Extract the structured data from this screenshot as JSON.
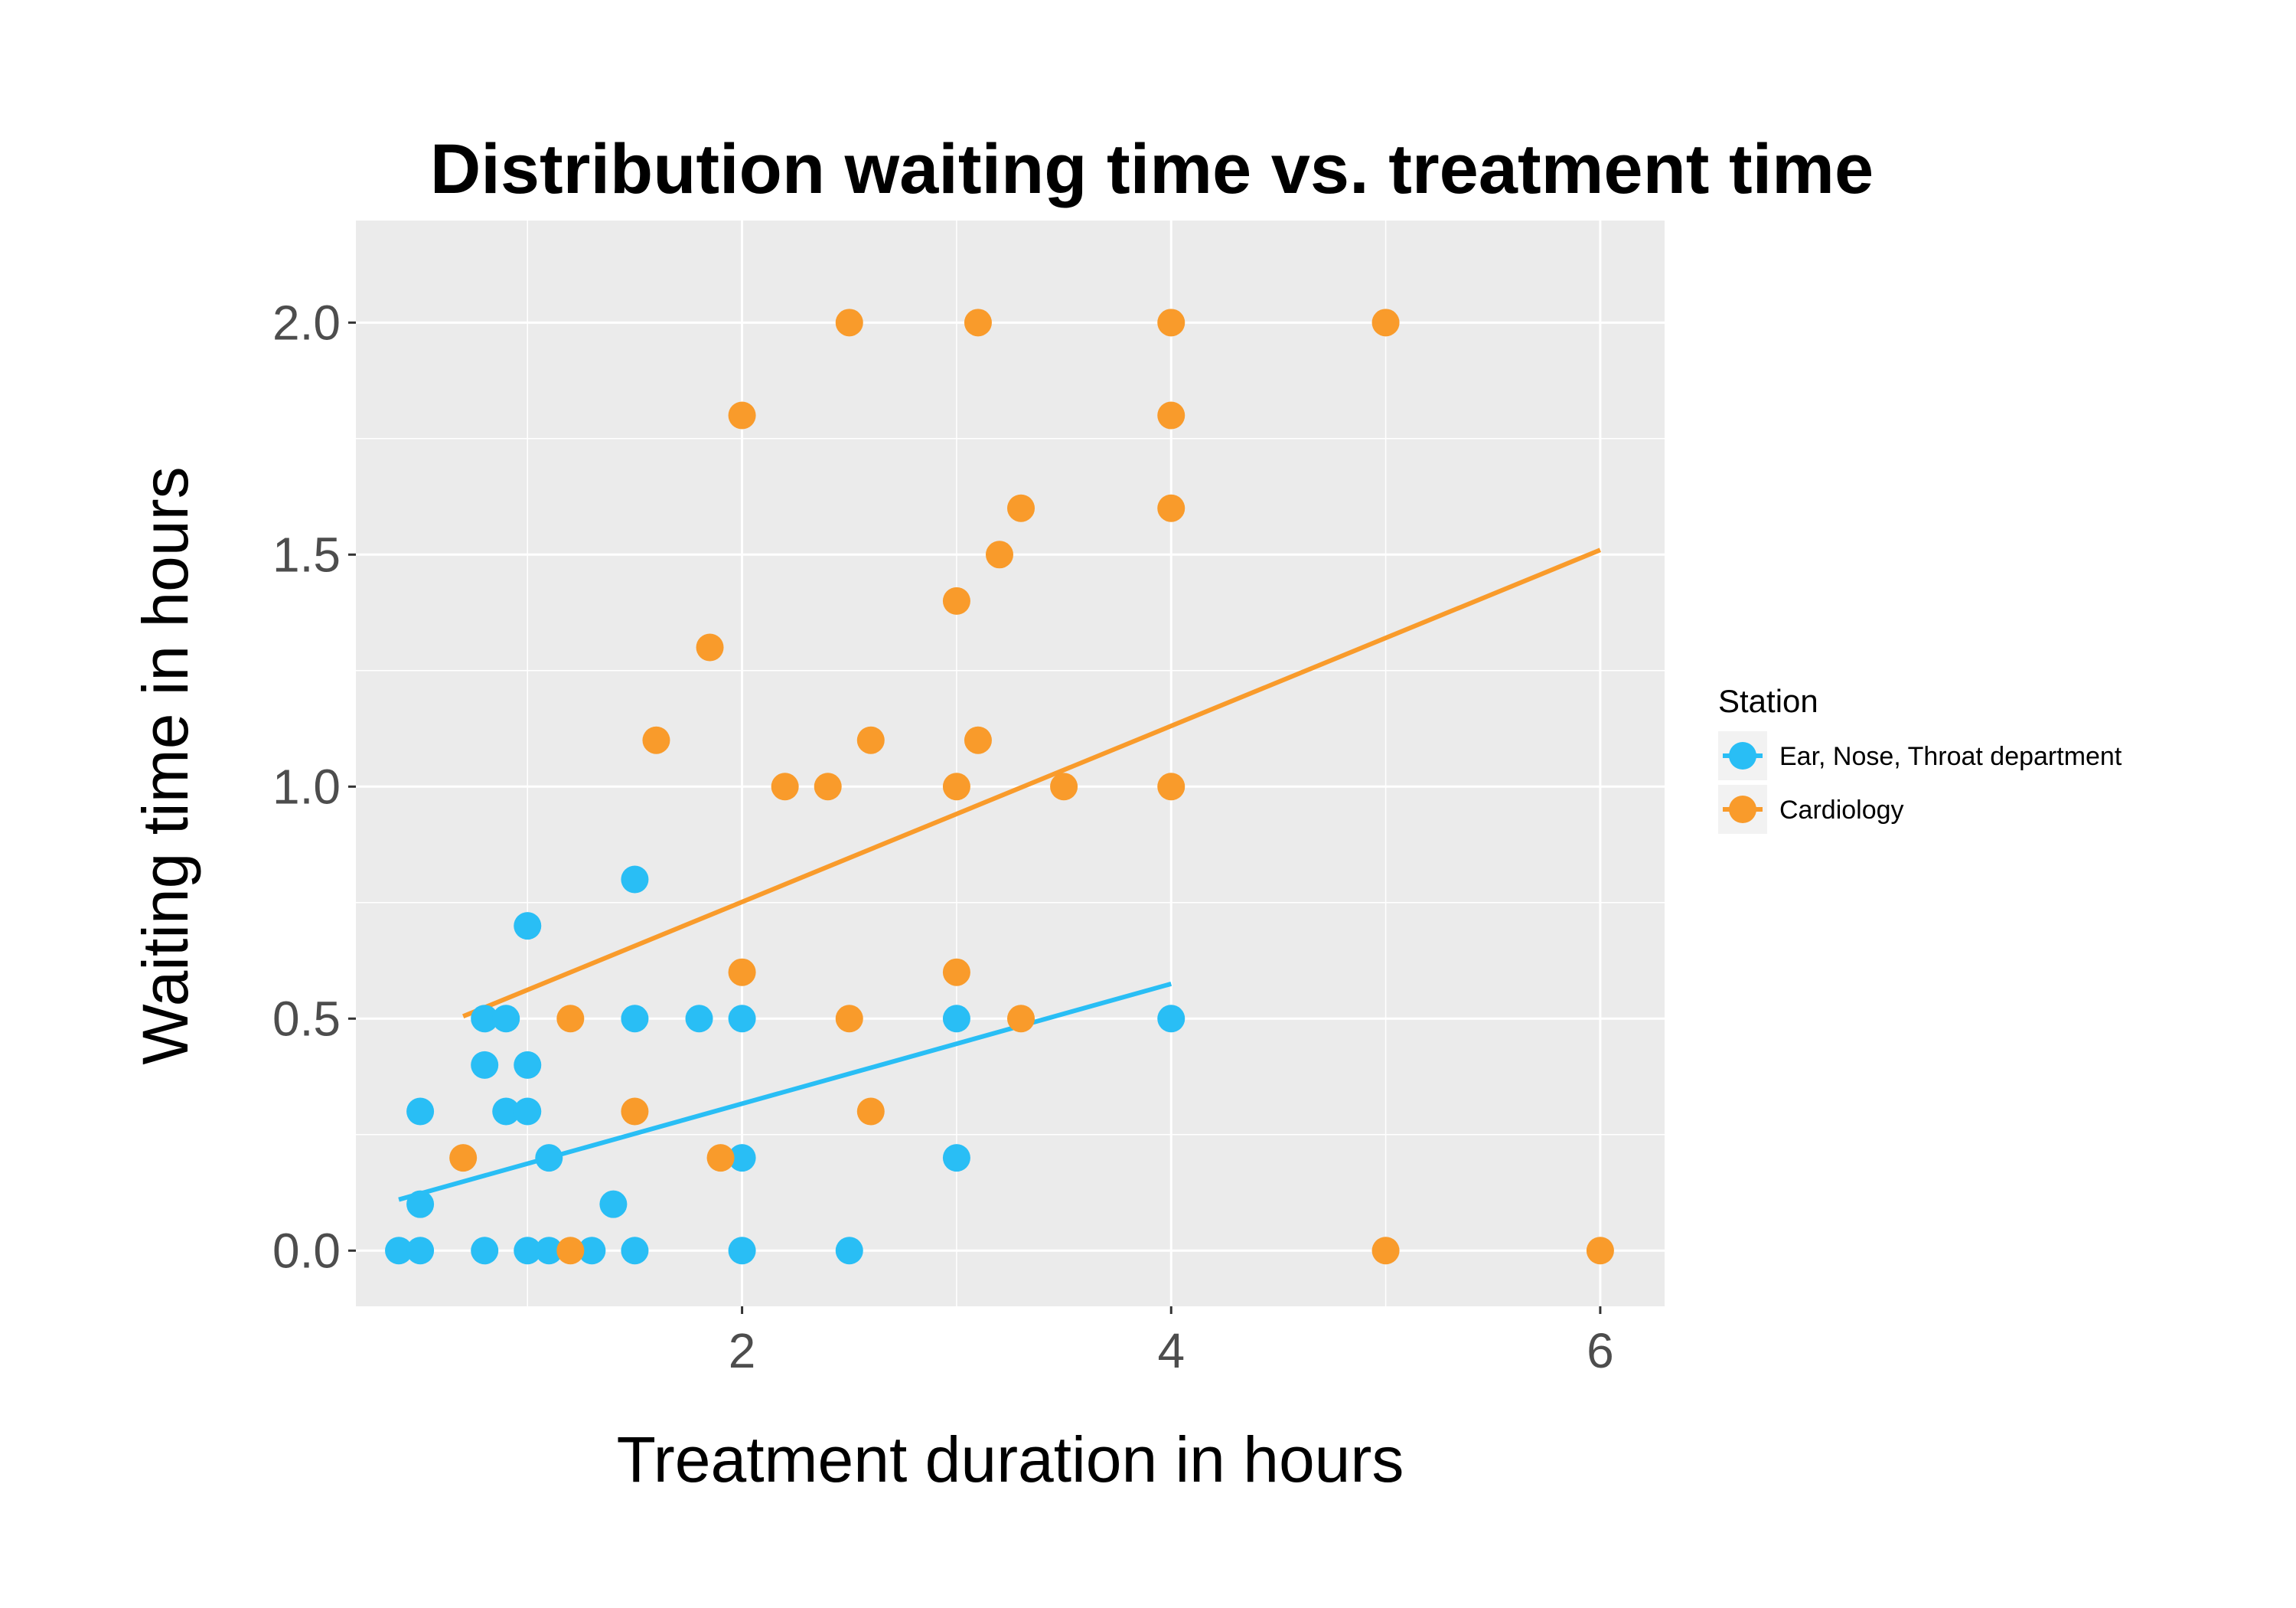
{
  "chart_data": {
    "type": "scatter",
    "title": "Distribution waiting time vs. treatment time",
    "xlabel": "Treatment duration in hours",
    "ylabel": "Waiting time in hours",
    "xlim": [
      0.2,
      6.3
    ],
    "ylim": [
      -0.12,
      2.22
    ],
    "x_ticks": [
      {
        "value": 2,
        "label": "2"
      },
      {
        "value": 4,
        "label": "4"
      },
      {
        "value": 6,
        "label": "6"
      }
    ],
    "x_minor_ticks": [
      1,
      3,
      5
    ],
    "y_ticks": [
      {
        "value": 0.0,
        "label": "0.0"
      },
      {
        "value": 0.5,
        "label": "0.5"
      },
      {
        "value": 1.0,
        "label": "1.0"
      },
      {
        "value": 1.5,
        "label": "1.5"
      },
      {
        "value": 2.0,
        "label": "2.0"
      }
    ],
    "y_minor_ticks": [
      0.25,
      0.75,
      1.25,
      1.75
    ],
    "grid": true,
    "legend_title": "Station",
    "legend_position": "right",
    "series": [
      {
        "name": "Ear, Nose, Throat department",
        "color": "#29bef5",
        "points": [
          [
            0.4,
            0.0
          ],
          [
            0.5,
            0.0
          ],
          [
            0.8,
            0.0
          ],
          [
            1.0,
            0.0
          ],
          [
            1.1,
            0.0
          ],
          [
            1.3,
            0.0
          ],
          [
            1.5,
            0.0
          ],
          [
            2.0,
            0.0
          ],
          [
            2.5,
            0.0
          ],
          [
            0.5,
            0.1
          ],
          [
            1.4,
            0.1
          ],
          [
            1.1,
            0.2
          ],
          [
            2.0,
            0.2
          ],
          [
            3.0,
            0.2
          ],
          [
            0.5,
            0.3
          ],
          [
            0.9,
            0.3
          ],
          [
            1.0,
            0.3
          ],
          [
            0.8,
            0.4
          ],
          [
            1.0,
            0.4
          ],
          [
            0.8,
            0.5
          ],
          [
            0.9,
            0.5
          ],
          [
            1.5,
            0.5
          ],
          [
            1.8,
            0.5
          ],
          [
            2.0,
            0.5
          ],
          [
            3.0,
            0.5
          ],
          [
            4.0,
            0.5
          ],
          [
            1.0,
            0.7
          ],
          [
            1.5,
            0.8
          ]
        ],
        "trend": {
          "x": [
            0.4,
            4.0
          ],
          "y": [
            0.11,
            0.575
          ]
        }
      },
      {
        "name": "Cardiology",
        "color": "#f99b2b",
        "points": [
          [
            1.2,
            0.0
          ],
          [
            5.0,
            0.0
          ],
          [
            6.0,
            0.0
          ],
          [
            0.7,
            0.2
          ],
          [
            1.9,
            0.2
          ],
          [
            1.5,
            0.3
          ],
          [
            2.6,
            0.3
          ],
          [
            1.2,
            0.5
          ],
          [
            2.5,
            0.5
          ],
          [
            3.3,
            0.5
          ],
          [
            2.0,
            0.6
          ],
          [
            3.0,
            0.6
          ],
          [
            2.2,
            1.0
          ],
          [
            2.4,
            1.0
          ],
          [
            3.0,
            1.0
          ],
          [
            3.5,
            1.0
          ],
          [
            4.0,
            1.0
          ],
          [
            1.6,
            1.1
          ],
          [
            2.6,
            1.1
          ],
          [
            3.1,
            1.1
          ],
          [
            1.85,
            1.3
          ],
          [
            3.0,
            1.4
          ],
          [
            3.2,
            1.5
          ],
          [
            3.3,
            1.6
          ],
          [
            4.0,
            1.6
          ],
          [
            2.0,
            1.8
          ],
          [
            4.0,
            1.8
          ],
          [
            2.5,
            2.0
          ],
          [
            3.1,
            2.0
          ],
          [
            4.0,
            2.0
          ],
          [
            5.0,
            2.0
          ]
        ],
        "trend": {
          "x": [
            0.7,
            6.0
          ],
          "y": [
            0.505,
            1.51
          ]
        }
      }
    ]
  }
}
